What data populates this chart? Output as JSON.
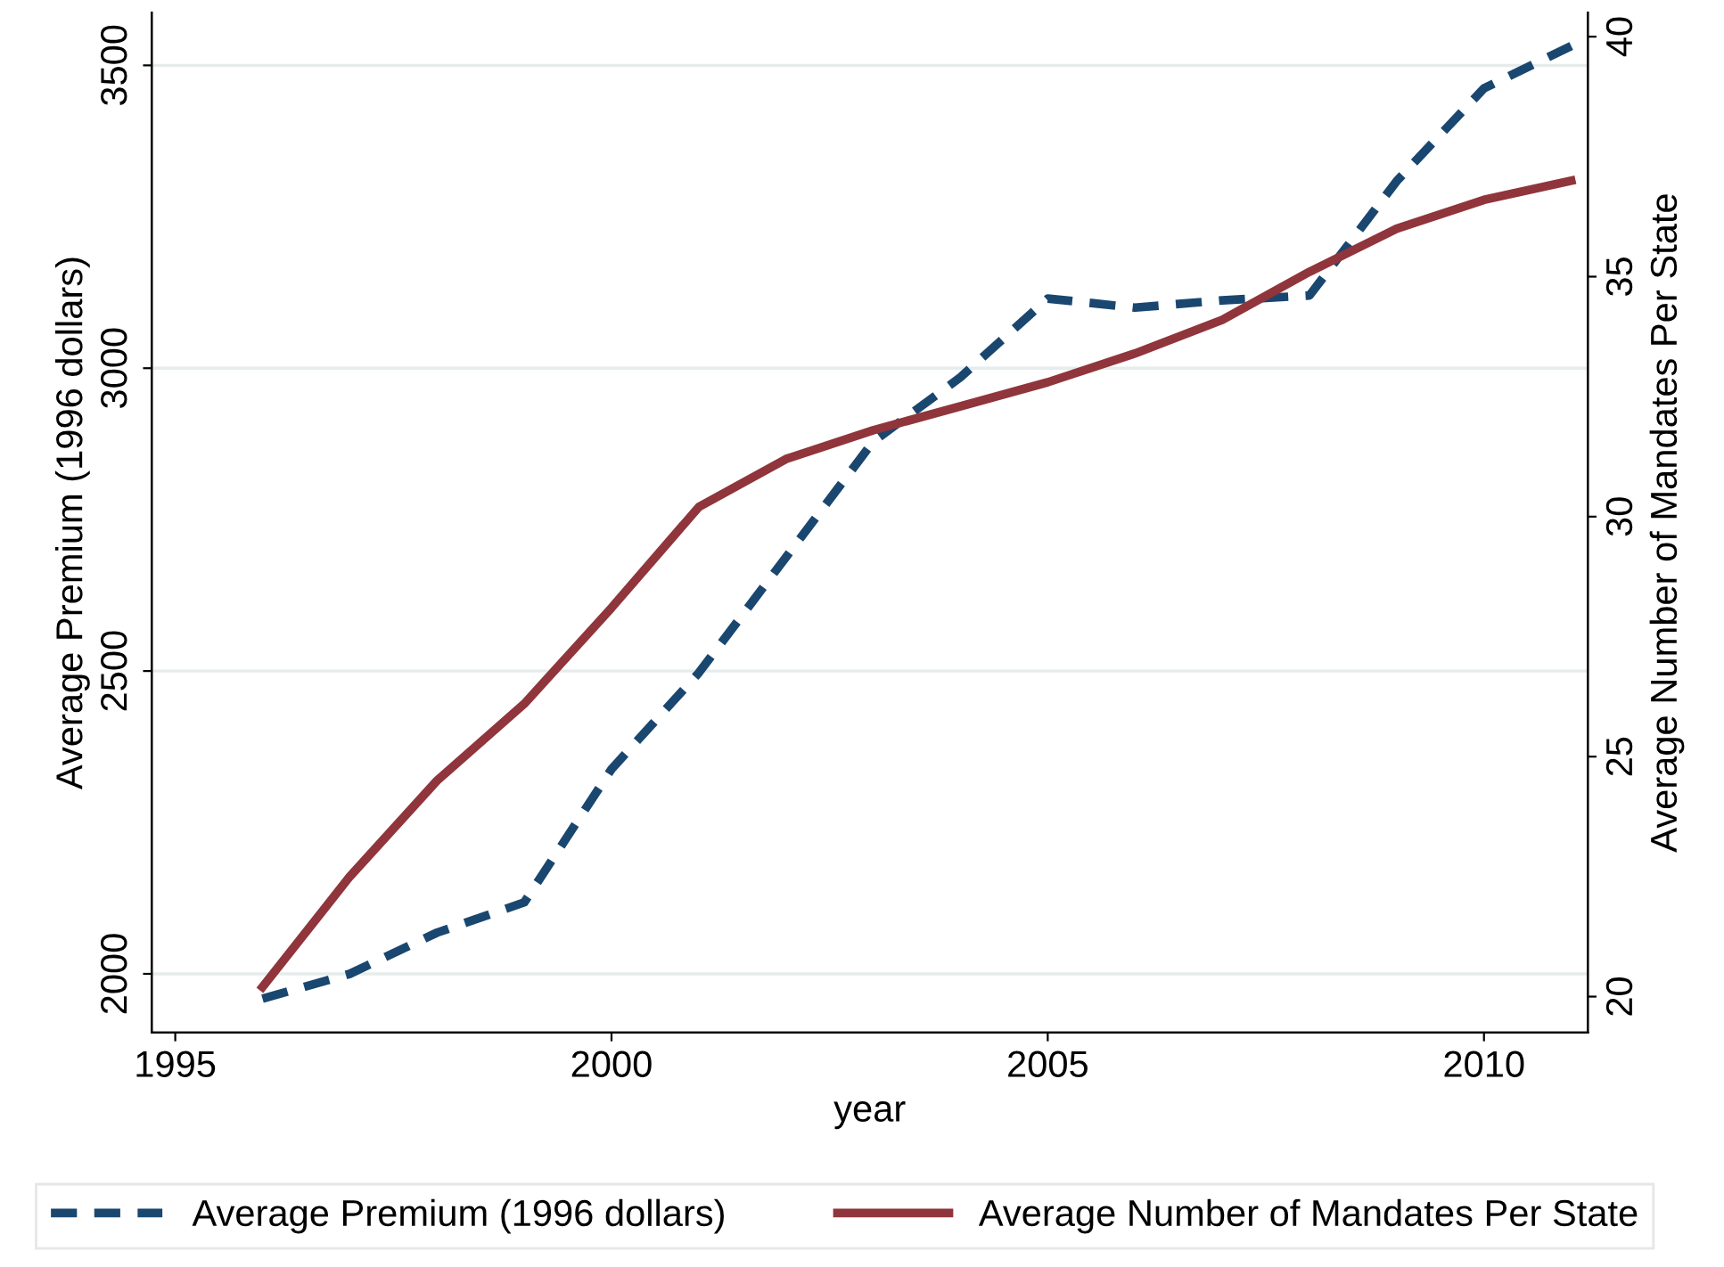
{
  "chart_data": {
    "type": "line",
    "xlabel": "year",
    "ylabel": "Average Premium (1996 dollars)",
    "y2label": "Average Number of Mandates Per State",
    "x": [
      1996,
      1997,
      1998,
      1999,
      2000,
      2001,
      2002,
      2003,
      2004,
      2005,
      2006,
      2007,
      2008,
      2009,
      2010,
      2011
    ],
    "series": [
      {
        "name": "Average Premium (1996 dollars)",
        "color": "#1a476f",
        "line_style": "dashed",
        "values": [
          1959,
          2000,
          2068,
          2118,
          2338,
          2497,
          2688,
          2879,
          2985,
          3115,
          3100,
          3112,
          3120,
          3309,
          3462,
          3532
        ]
      },
      {
        "name": "Average Number of Mandates Per State",
        "color": "#90353b",
        "line_style": "solid",
        "axis": "y2",
        "values": [
          20.2,
          22.5,
          24.5,
          26.1,
          28.1,
          30.2,
          31.2,
          31.8,
          32.3,
          32.8,
          33.4,
          34.1,
          35.1,
          36.0,
          36.6,
          37.0
        ]
      }
    ],
    "xlim": [
      1994.73,
      2011.19
    ],
    "xticks": [
      1995,
      2000,
      2005,
      2010
    ],
    "ylim": [
      1903,
      3587
    ],
    "yticks": [
      2000,
      2500,
      3000,
      3500
    ],
    "y2lim": [
      19.25,
      40.5
    ],
    "y2ticks": [
      20,
      25,
      30,
      35,
      40
    ],
    "grid": "y",
    "legend": "bottom",
    "marker": "none"
  }
}
